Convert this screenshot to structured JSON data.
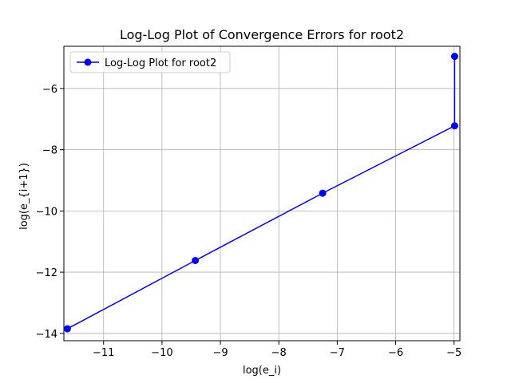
{
  "chart_data": {
    "type": "line",
    "title": "Log-Log Plot of Convergence Errors for root2",
    "xlabel": "log(e_i)",
    "ylabel": "log(e_{i+1})",
    "xlim": [
      -11.68,
      -4.9
    ],
    "ylim": [
      -14.24,
      -4.62
    ],
    "xticks": [
      -11,
      -10,
      -9,
      -8,
      -7,
      -6,
      -5
    ],
    "yticks": [
      -14,
      -12,
      -10,
      -8,
      -6
    ],
    "grid": true,
    "legend_position": "top-left",
    "series": [
      {
        "name": "Log-Log Plot for root2",
        "color": "#0000ff",
        "marker": "circle",
        "x": [
          -4.99,
          -4.99,
          -7.25,
          -9.43,
          -11.62
        ],
        "y": [
          -4.95,
          -7.22,
          -9.42,
          -11.62,
          -13.85
        ]
      }
    ]
  }
}
